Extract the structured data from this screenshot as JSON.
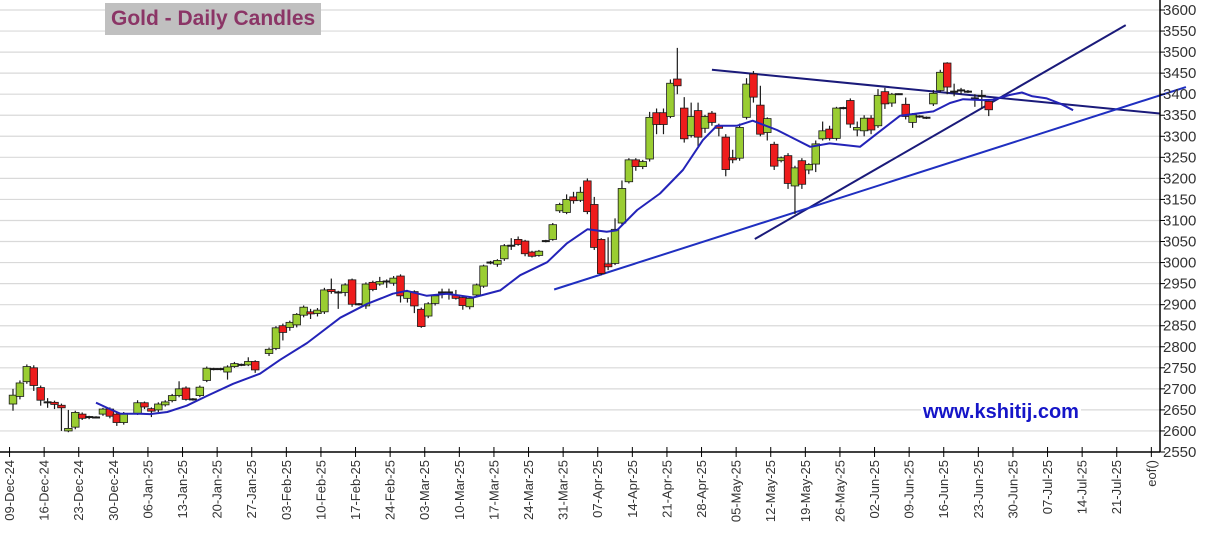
{
  "chart_data": {
    "type": "candlestick",
    "title": "Gold - Daily Candles",
    "watermark": "www.kshitij.com",
    "x_unit": "trading day index from 09-Dec-24",
    "ylim": [
      2550,
      3600
    ],
    "ytick_step": 50,
    "grid": true,
    "x_tick_labels": [
      "09-Dec-24",
      "16-Dec-24",
      "23-Dec-24",
      "30-Dec-24",
      "06-Jan-25",
      "13-Jan-25",
      "20-Jan-25",
      "27-Jan-25",
      "03-Feb-25",
      "10-Feb-25",
      "17-Feb-25",
      "24-Feb-25",
      "03-Mar-25",
      "10-Mar-25",
      "17-Mar-25",
      "24-Mar-25",
      "31-Mar-25",
      "07-Apr-25",
      "14-Apr-25",
      "21-Apr-25",
      "28-Apr-25",
      "05-May-25",
      "12-May-25",
      "19-May-25",
      "26-May-25",
      "02-Jun-25",
      "09-Jun-25",
      "16-Jun-25",
      "23-Jun-25",
      "30-Jun-25",
      "07-Jul-25",
      "14-Jul-25",
      "21-Jul-25",
      "eof()"
    ],
    "candle_fields": [
      "day",
      "open",
      "high",
      "low",
      "close"
    ],
    "candles": [
      [
        0,
        2664,
        2700,
        2648,
        2685
      ],
      [
        1,
        2682,
        2720,
        2675,
        2714
      ],
      [
        2,
        2717,
        2758,
        2712,
        2753
      ],
      [
        3,
        2750,
        2756,
        2695,
        2708
      ],
      [
        4,
        2703,
        2708,
        2660,
        2673
      ],
      [
        5,
        2668,
        2678,
        2655,
        2668
      ],
      [
        6,
        2668,
        2672,
        2652,
        2663
      ],
      [
        7,
        2661,
        2665,
        2600,
        2655
      ],
      [
        8,
        2600,
        2650,
        2597,
        2606
      ],
      [
        9,
        2609,
        2648,
        2604,
        2644
      ],
      [
        10,
        2640,
        2644,
        2626,
        2630
      ],
      [
        11,
        2631,
        2636,
        2628,
        2633
      ],
      [
        12,
        2632,
        2635,
        2630,
        2632
      ],
      [
        13,
        2640,
        2655,
        2636,
        2652
      ],
      [
        14,
        2652,
        2656,
        2630,
        2635
      ],
      [
        15,
        2640,
        2643,
        2612,
        2620
      ],
      [
        16,
        2620,
        2645,
        2615,
        2641
      ],
      [
        18,
        2641,
        2673,
        2638,
        2667
      ],
      [
        19,
        2667,
        2670,
        2652,
        2657
      ],
      [
        20,
        2653,
        2656,
        2633,
        2647
      ],
      [
        21,
        2650,
        2668,
        2645,
        2664
      ],
      [
        22,
        2662,
        2673,
        2658,
        2669
      ],
      [
        23,
        2672,
        2688,
        2668,
        2684
      ],
      [
        24,
        2684,
        2718,
        2680,
        2700
      ],
      [
        25,
        2702,
        2706,
        2672,
        2675
      ],
      [
        26,
        2675,
        2678,
        2672,
        2675
      ],
      [
        27,
        2684,
        2708,
        2680,
        2704
      ],
      [
        28,
        2720,
        2753,
        2716,
        2749
      ],
      [
        29,
        2747,
        2750,
        2744,
        2747
      ],
      [
        30,
        2747,
        2750,
        2744,
        2747
      ],
      [
        31,
        2740,
        2756,
        2722,
        2752
      ],
      [
        32,
        2753,
        2764,
        2750,
        2760
      ],
      [
        33,
        2757,
        2760,
        2754,
        2757
      ],
      [
        34,
        2757,
        2775,
        2754,
        2765
      ],
      [
        35,
        2765,
        2768,
        2738,
        2745
      ],
      [
        37,
        2784,
        2798,
        2778,
        2794
      ],
      [
        38,
        2796,
        2849,
        2792,
        2845
      ],
      [
        39,
        2850,
        2855,
        2815,
        2834
      ],
      [
        40,
        2846,
        2862,
        2838,
        2858
      ],
      [
        41,
        2852,
        2880,
        2846,
        2877
      ],
      [
        42,
        2875,
        2898,
        2870,
        2894
      ],
      [
        43,
        2883,
        2890,
        2866,
        2878
      ],
      [
        44,
        2879,
        2892,
        2872,
        2887
      ],
      [
        45,
        2883,
        2940,
        2878,
        2935
      ],
      [
        46,
        2936,
        2962,
        2926,
        2931
      ],
      [
        47,
        2929,
        2933,
        2890,
        2929
      ],
      [
        48,
        2929,
        2951,
        2920,
        2947
      ],
      [
        49,
        2959,
        2962,
        2895,
        2901
      ],
      [
        50,
        2901,
        2904,
        2898,
        2901
      ],
      [
        51,
        2897,
        2953,
        2890,
        2949
      ],
      [
        52,
        2953,
        2957,
        2932,
        2936
      ],
      [
        53,
        2949,
        2966,
        2945,
        2955
      ],
      [
        54,
        2955,
        2960,
        2940,
        2955
      ],
      [
        55,
        2951,
        2968,
        2945,
        2963
      ],
      [
        56,
        2968,
        2972,
        2905,
        2921
      ],
      [
        57,
        2915,
        2935,
        2905,
        2931
      ],
      [
        58,
        2931,
        2934,
        2880,
        2897
      ],
      [
        59,
        2889,
        2893,
        2845,
        2848
      ],
      [
        60,
        2873,
        2906,
        2868,
        2902
      ],
      [
        61,
        2903,
        2925,
        2898,
        2921
      ],
      [
        62,
        2929,
        2938,
        2915,
        2929
      ],
      [
        63,
        2929,
        2938,
        2912,
        2929
      ],
      [
        64,
        2923,
        2935,
        2912,
        2915
      ],
      [
        65,
        2917,
        2920,
        2888,
        2898
      ],
      [
        66,
        2895,
        2918,
        2889,
        2915
      ],
      [
        67,
        2923,
        2950,
        2920,
        2947
      ],
      [
        68,
        2944,
        2995,
        2940,
        2992
      ],
      [
        69,
        3000,
        3004,
        2996,
        3000
      ],
      [
        70,
        2996,
        3008,
        2990,
        3005
      ],
      [
        71,
        3009,
        3044,
        3004,
        3040
      ],
      [
        72,
        3040,
        3058,
        3030,
        3040
      ],
      [
        73,
        3055,
        3062,
        3040,
        3043
      ],
      [
        74,
        3051,
        3054,
        3015,
        3021
      ],
      [
        75,
        3025,
        3028,
        3012,
        3015
      ],
      [
        76,
        3017,
        3030,
        3014,
        3027
      ],
      [
        77,
        3051,
        3054,
        3048,
        3051
      ],
      [
        78,
        3055,
        3094,
        3052,
        3090
      ],
      [
        79,
        3123,
        3142,
        3118,
        3138
      ],
      [
        80,
        3119,
        3162,
        3115,
        3150
      ],
      [
        81,
        3156,
        3168,
        3140,
        3147
      ],
      [
        82,
        3148,
        3180,
        3144,
        3167
      ],
      [
        83,
        3194,
        3200,
        3115,
        3121
      ],
      [
        84,
        3138,
        3156,
        3030,
        3036
      ],
      [
        85,
        3055,
        3058,
        2970,
        2974
      ],
      [
        86,
        2997,
        3060,
        2982,
        2990
      ],
      [
        87,
        2998,
        3105,
        2994,
        3079
      ],
      [
        88,
        3094,
        3195,
        3090,
        3176
      ],
      [
        89,
        3192,
        3248,
        3188,
        3244
      ],
      [
        90,
        3244,
        3248,
        3218,
        3228
      ],
      [
        91,
        3228,
        3244,
        3222,
        3240
      ],
      [
        92,
        3246,
        3358,
        3240,
        3345
      ],
      [
        93,
        3356,
        3366,
        3305,
        3328
      ],
      [
        94,
        3356,
        3366,
        3305,
        3328
      ],
      [
        95,
        3347,
        3435,
        3343,
        3426
      ],
      [
        96,
        3436,
        3510,
        3400,
        3420
      ],
      [
        97,
        3367,
        3393,
        3285,
        3294
      ],
      [
        98,
        3302,
        3380,
        3297,
        3347
      ],
      [
        99,
        3361,
        3380,
        3275,
        3298
      ],
      [
        100,
        3319,
        3351,
        3308,
        3347
      ],
      [
        101,
        3355,
        3360,
        3325,
        3333
      ],
      [
        102,
        3325,
        3330,
        3300,
        3319
      ],
      [
        103,
        3298,
        3305,
        3205,
        3221
      ],
      [
        104,
        3249,
        3268,
        3236,
        3244
      ],
      [
        105,
        3248,
        3330,
        3242,
        3321
      ],
      [
        106,
        3345,
        3438,
        3340,
        3424
      ],
      [
        107,
        3448,
        3455,
        3380,
        3393
      ],
      [
        108,
        3374,
        3420,
        3300,
        3305
      ],
      [
        109,
        3309,
        3345,
        3290,
        3342
      ],
      [
        110,
        3281,
        3287,
        3220,
        3229
      ],
      [
        111,
        3242,
        3252,
        3238,
        3249
      ],
      [
        112,
        3254,
        3260,
        3175,
        3188
      ],
      [
        113,
        3182,
        3230,
        3115,
        3225
      ],
      [
        114,
        3242,
        3248,
        3175,
        3186
      ],
      [
        115,
        3220,
        3236,
        3210,
        3233
      ],
      [
        116,
        3234,
        3290,
        3215,
        3282
      ],
      [
        117,
        3294,
        3335,
        3290,
        3313
      ],
      [
        118,
        3317,
        3325,
        3290,
        3295
      ],
      [
        119,
        3295,
        3370,
        3290,
        3367
      ],
      [
        120,
        3367,
        3370,
        3364,
        3367
      ],
      [
        121,
        3385,
        3390,
        3320,
        3329
      ],
      [
        122,
        3315,
        3335,
        3300,
        3321
      ],
      [
        123,
        3313,
        3350,
        3300,
        3343
      ],
      [
        124,
        3343,
        3350,
        3305,
        3315
      ],
      [
        125,
        3325,
        3412,
        3320,
        3397
      ],
      [
        126,
        3406,
        3415,
        3365,
        3377
      ],
      [
        127,
        3379,
        3403,
        3370,
        3400
      ],
      [
        128,
        3400,
        3402,
        3398,
        3400
      ],
      [
        129,
        3376,
        3392,
        3340,
        3347
      ],
      [
        130,
        3333,
        3355,
        3320,
        3351
      ],
      [
        131,
        3347,
        3350,
        3344,
        3347
      ],
      [
        132,
        3344,
        3347,
        3341,
        3344
      ],
      [
        133,
        3377,
        3410,
        3372,
        3402
      ],
      [
        134,
        3409,
        3458,
        3405,
        3452
      ],
      [
        135,
        3474,
        3476,
        3400,
        3417
      ],
      [
        136,
        3406,
        3425,
        3395,
        3406
      ],
      [
        137,
        3409,
        3415,
        3400,
        3409
      ],
      [
        138,
        3406,
        3410,
        3403,
        3406
      ],
      [
        139,
        3390,
        3400,
        3370,
        3390
      ],
      [
        140,
        3396,
        3410,
        3365,
        3396
      ],
      [
        141,
        3383,
        3386,
        3348,
        3363
      ]
    ],
    "moving_average": [
      [
        12,
        2667
      ],
      [
        14,
        2652
      ],
      [
        15.5,
        2641
      ],
      [
        18.4,
        2641
      ],
      [
        19.8,
        2640
      ],
      [
        22.3,
        2645
      ],
      [
        25.1,
        2660
      ],
      [
        28,
        2683
      ],
      [
        31.8,
        2712
      ],
      [
        35.7,
        2736
      ],
      [
        38.6,
        2769
      ],
      [
        42.5,
        2809
      ],
      [
        47.3,
        2869
      ],
      [
        51.2,
        2902
      ],
      [
        54.9,
        2926
      ],
      [
        56.9,
        2933
      ],
      [
        59.8,
        2921
      ],
      [
        62.7,
        2926
      ],
      [
        66.5,
        2917
      ],
      [
        70.4,
        2934
      ],
      [
        73.3,
        2970
      ],
      [
        77.2,
        3001
      ],
      [
        80,
        3045
      ],
      [
        83,
        3079
      ],
      [
        85.8,
        3073
      ],
      [
        87.3,
        3077
      ],
      [
        90.2,
        3125
      ],
      [
        93.5,
        3164
      ],
      [
        96.8,
        3220
      ],
      [
        99.7,
        3291
      ],
      [
        101.7,
        3325
      ],
      [
        104.6,
        3325
      ],
      [
        106.9,
        3337
      ],
      [
        110.4,
        3315
      ],
      [
        113.3,
        3291
      ],
      [
        115.2,
        3275
      ],
      [
        118,
        3283
      ],
      [
        122.4,
        3275
      ],
      [
        124.9,
        3307
      ],
      [
        128.2,
        3349
      ],
      [
        133,
        3359
      ],
      [
        135.4,
        3379
      ],
      [
        137.3,
        3388
      ],
      [
        140.2,
        3386
      ],
      [
        141.6,
        3387
      ],
      [
        144,
        3398
      ],
      [
        145.8,
        3404
      ],
      [
        147.3,
        3395
      ],
      [
        149.4,
        3390
      ],
      [
        151.3,
        3378
      ],
      [
        153.2,
        3362
      ]
    ],
    "trendlines": [
      {
        "name": "upper-resistance",
        "from": [
          101,
          3458
        ],
        "to": [
          165.7,
          3354
        ],
        "color": "#1a1a7a"
      },
      {
        "name": "steep-support",
        "from": [
          107.2,
          3056
        ],
        "to": [
          160.8,
          3564
        ],
        "color": "#1a1a7a"
      },
      {
        "name": "long-support",
        "from": [
          78.2,
          2936
        ],
        "to": [
          169.5,
          3417
        ],
        "color": "#1f2fc0"
      }
    ],
    "colors": {
      "up": "#9acd32",
      "down": "#ee1c1c",
      "outline": "#1a1a1a",
      "ma": "#2323b8",
      "grid": "#d9d9d9",
      "title": "#8b3566",
      "title_bg": "#c0c0c0",
      "watermark": "#1515c8"
    }
  }
}
